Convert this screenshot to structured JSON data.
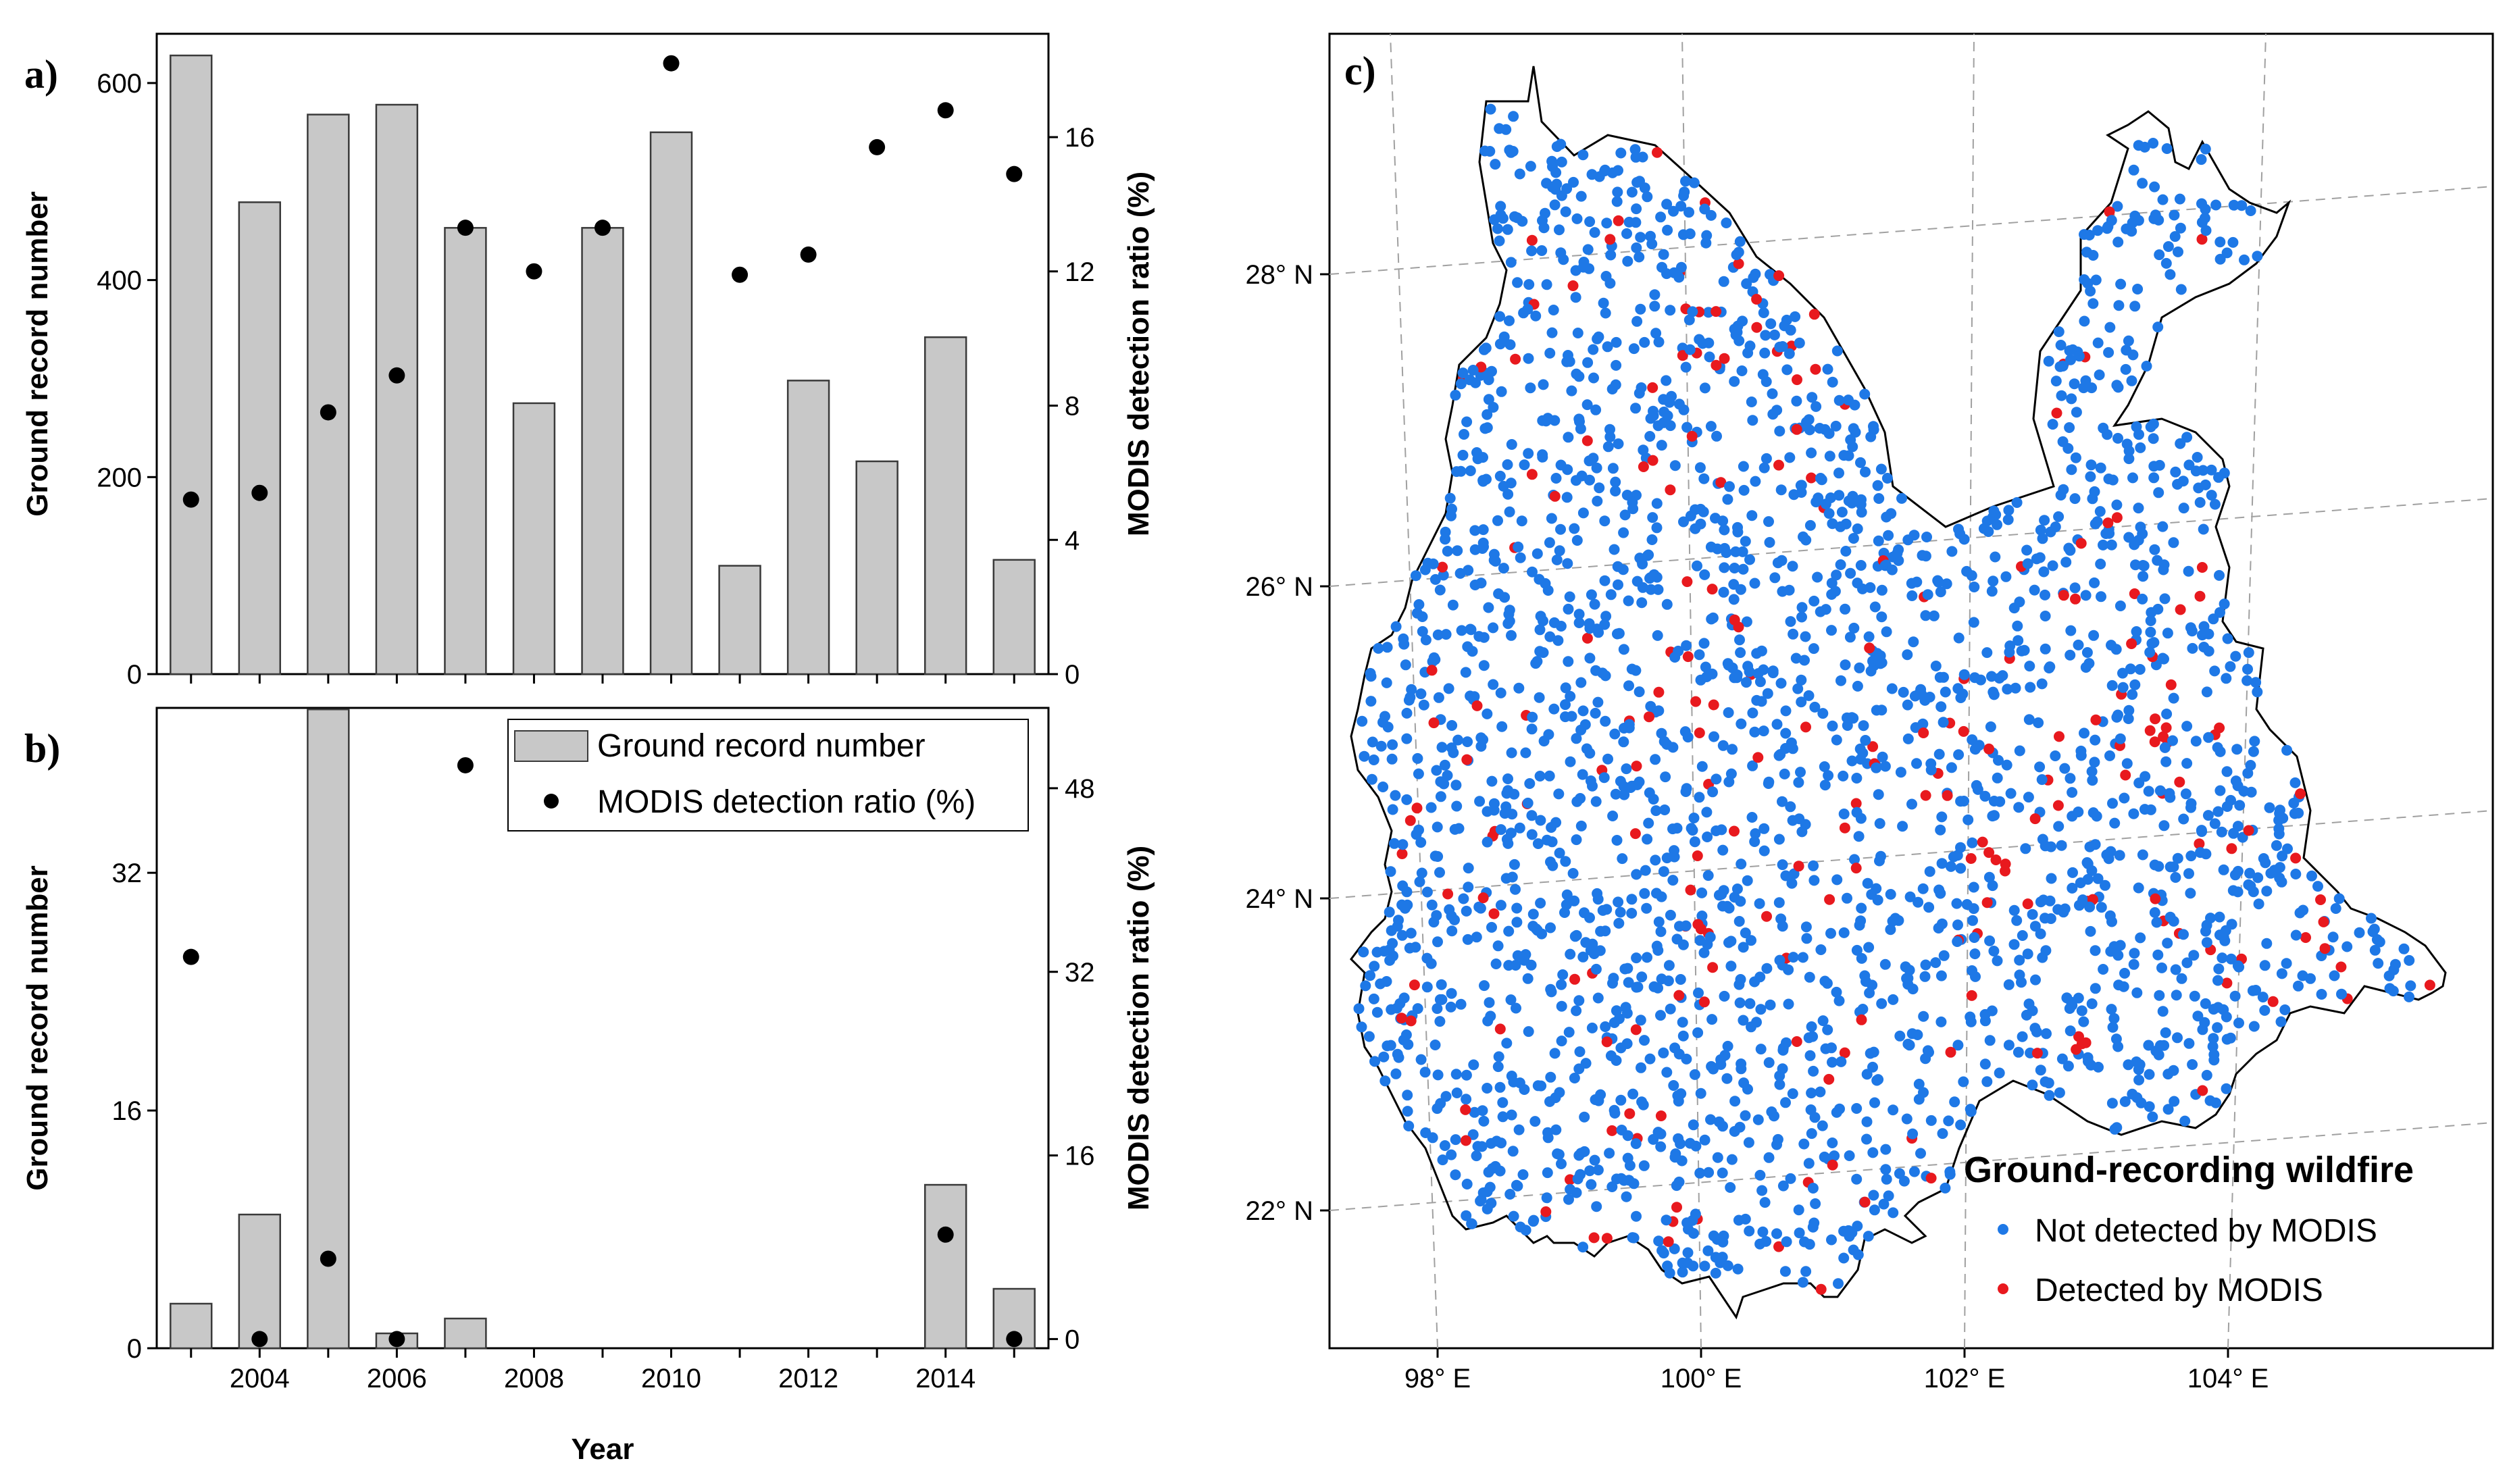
{
  "colors": {
    "bar_fill": "#c8c8c8",
    "bar_stroke": "#3a3a3a",
    "dot": "#000000",
    "not_detected": "#1e78e6",
    "detected": "#e8191e",
    "grid": "#a0a0a0"
  },
  "chart_data": [
    {
      "panel": "a)",
      "type": "bar",
      "x": [
        2003,
        2004,
        2005,
        2006,
        2007,
        2008,
        2009,
        2010,
        2011,
        2012,
        2013,
        2014,
        2015
      ],
      "series": [
        {
          "name": "Ground record number",
          "type": "bar",
          "axis": "left",
          "values": [
            628,
            479,
            568,
            578,
            453,
            275,
            453,
            550,
            110,
            298,
            216,
            342,
            116
          ]
        },
        {
          "name": "MODIS detection ratio (%)",
          "type": "scatter",
          "axis": "right",
          "values": [
            5.2,
            5.4,
            7.8,
            8.9,
            13.3,
            12.0,
            13.3,
            18.2,
            11.9,
            12.5,
            15.7,
            16.8,
            14.9
          ]
        }
      ],
      "ylabel": "Ground record number",
      "y2label": "MODIS detection ratio (%)",
      "ylim": [
        0,
        650
      ],
      "y2lim": [
        0,
        19.08
      ],
      "yticks": [
        "0",
        "200",
        "400",
        "600"
      ],
      "y2ticks": [
        "0",
        "4",
        "8",
        "12",
        "16"
      ],
      "grid": false
    },
    {
      "panel": "b)",
      "type": "bar",
      "x": [
        2003,
        2004,
        2005,
        2006,
        2007,
        2008,
        2009,
        2010,
        2011,
        2012,
        2013,
        2014,
        2015
      ],
      "series": [
        {
          "name": "Ground record number",
          "type": "bar",
          "axis": "left",
          "values": [
            3,
            9,
            43,
            1,
            2,
            0,
            0,
            0,
            0,
            0,
            0,
            11,
            4
          ]
        },
        {
          "name": "MODIS detection ratio (%)",
          "type": "scatter",
          "axis": "right",
          "values": [
            33.3,
            0,
            7,
            0,
            50,
            null,
            null,
            null,
            null,
            null,
            null,
            9.1,
            0
          ]
        }
      ],
      "xlabel": "Year",
      "ylabel": "Ground record number",
      "y2label": "MODIS detection ratio (%)",
      "xticks": [
        "2004",
        "2006",
        "2008",
        "2010",
        "2012",
        "2014"
      ],
      "ylim": [
        0,
        43.1
      ],
      "y2lim": [
        -0.8,
        55
      ],
      "yticks": [
        "0",
        "16",
        "32"
      ],
      "y2ticks": [
        "0",
        "16",
        "32",
        "48"
      ],
      "legend_position": "top-right",
      "grid": false
    },
    {
      "panel": "c)",
      "type": "scatter",
      "description_kind": "map",
      "lon_ticks": [
        "98° E",
        "100° E",
        "102° E",
        "104° E"
      ],
      "lat_ticks": [
        "22° N",
        "24° N",
        "26° N",
        "28° N"
      ],
      "lon_range": [
        97.5,
        106.2
      ],
      "lat_range": [
        21.1,
        29.3
      ],
      "legend_title": "Ground-recording wildfire",
      "series": [
        {
          "name": "Not detected by MODIS",
          "color": "#1e78e6"
        },
        {
          "name": "Detected by MODIS",
          "color": "#e8191e"
        }
      ],
      "legend_position": "bottom-right",
      "grid": true
    }
  ],
  "legend_b": {
    "bar_label": "Ground record number",
    "dot_label": "MODIS detection ratio (%)"
  },
  "map_legend": {
    "title": "Ground-recording wildfire",
    "not_detected": "Not detected by MODIS",
    "detected": "Detected by MODIS"
  }
}
